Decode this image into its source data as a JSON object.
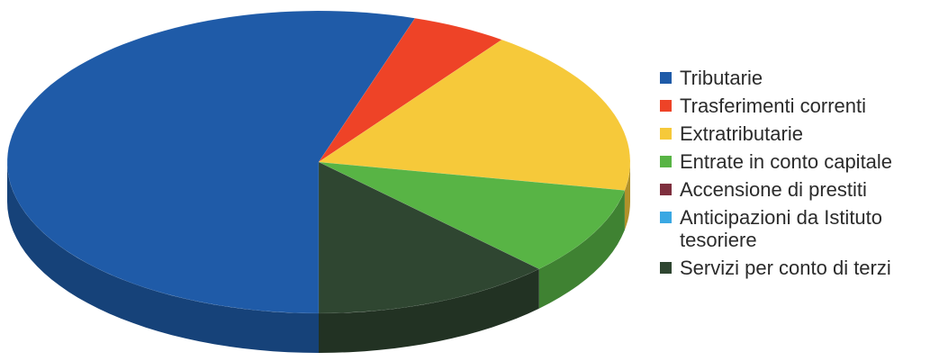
{
  "chart_data": {
    "type": "pie",
    "style": "3d",
    "title": "",
    "legend_position": "right",
    "categories": [
      "Tributarie",
      "Trasferimenti correnti",
      "Extratributarie",
      "Entrate in conto capitale",
      "Accensione di prestiti",
      "Anticipazioni da Istituto tesoriere",
      "Servizi per conto di terzi"
    ],
    "values": [
      55,
      5,
      18,
      9.5,
      0,
      0,
      12.5
    ],
    "colors": [
      "#1f5ba8",
      "#ee4327",
      "#f6c93a",
      "#58b445",
      "#7e2f3e",
      "#3aa8e3",
      "#2f4631"
    ]
  }
}
